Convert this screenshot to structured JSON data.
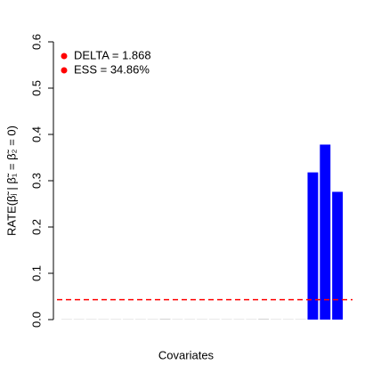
{
  "chart_data": {
    "type": "bar",
    "ylabel": "RATE(β̃ⱼ | β̃₁ = β̃₂ = 0)",
    "xlabel": "Covariates",
    "categories": [
      null,
      null,
      null,
      null,
      null,
      null,
      null,
      null,
      null,
      null,
      null,
      null,
      null,
      null,
      null,
      null,
      null,
      null,
      null,
      null,
      null,
      null,
      null
    ],
    "values": [
      0.001,
      0.001,
      0.001,
      0.001,
      0.001,
      0.001,
      0.001,
      0.001,
      0.002,
      0.001,
      0.001,
      0.001,
      0.001,
      0.001,
      0.001,
      0.001,
      0.002,
      0.001,
      0.001,
      0.001,
      0.318,
      0.378,
      0.276
    ],
    "colors": [
      "#d3d3d3",
      "#d3d3d3",
      "#d3d3d3",
      "#d3d3d3",
      "#d3d3d3",
      "#d3d3d3",
      "#d3d3d3",
      "#d3d3d3",
      "#d3d3d3",
      "#d3d3d3",
      "#d3d3d3",
      "#d3d3d3",
      "#d3d3d3",
      "#d3d3d3",
      "#d3d3d3",
      "#d3d3d3",
      "#d3d3d3",
      "#d3d3d3",
      "#d3d3d3",
      "#d3d3d3",
      "#0000ff",
      "#0000ff",
      "#0000ff"
    ],
    "ylim": [
      0,
      0.6
    ],
    "yticks": [
      {
        "value": 0,
        "label": "0.0"
      },
      0.1,
      0.2,
      0.3,
      0.4,
      0.5,
      0.6
    ],
    "hline": {
      "value": 0.043,
      "color": "#ff0000"
    },
    "legend": {
      "position": "top-left",
      "color": "#ff0000",
      "entries": [
        "DELTA = 1.868",
        "ESS = 34.86%"
      ]
    }
  }
}
